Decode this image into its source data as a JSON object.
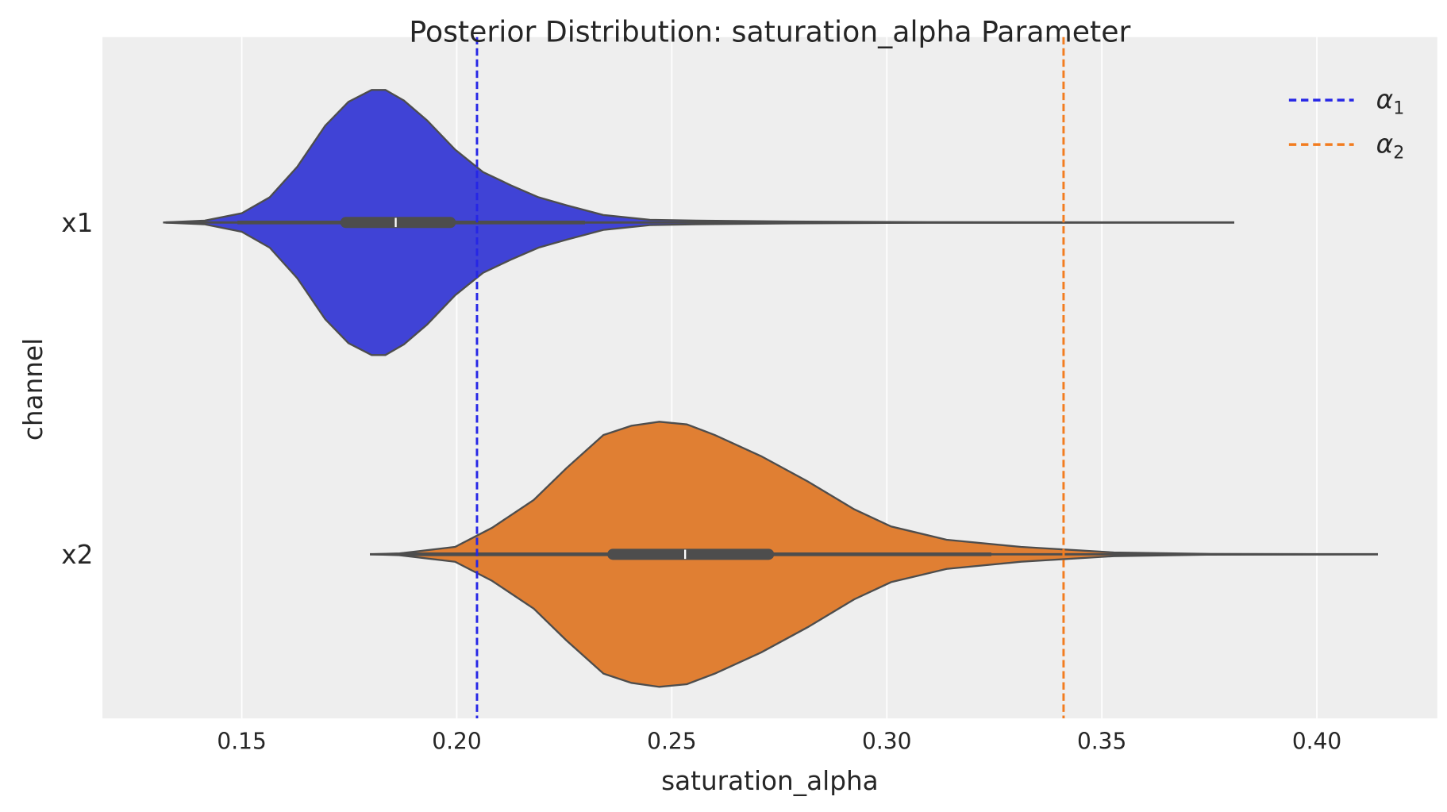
{
  "chart_data": {
    "type": "violin",
    "title": "Posterior Distribution: saturation_alpha Parameter",
    "xlabel": "saturation_alpha",
    "ylabel": "channel",
    "xlim": [
      0.1176,
      0.428
    ],
    "xticks": [
      "0.15",
      "0.20",
      "0.25",
      "0.30",
      "0.35",
      "0.40"
    ],
    "grid": true,
    "orientation": "horizontal",
    "legend_placement": "top-right",
    "categories": [
      "x1",
      "x2"
    ],
    "series": [
      {
        "category": "x1",
        "color": "#4043d6",
        "range": [
          0.1323,
          0.3808
        ],
        "whisker": [
          0.149,
          0.2298
        ],
        "quartiles": [
          0.1742,
          0.1858,
          0.1985
        ],
        "density": [
          [
            0.1317,
            0
          ],
          [
            0.1414,
            0.014
          ],
          [
            0.15,
            0.07
          ],
          [
            0.1565,
            0.19
          ],
          [
            0.1629,
            0.42
          ],
          [
            0.1694,
            0.73
          ],
          [
            0.1748,
            0.91
          ],
          [
            0.1802,
            1.0
          ],
          [
            0.1834,
            1.0
          ],
          [
            0.1877,
            0.92
          ],
          [
            0.1931,
            0.77
          ],
          [
            0.1996,
            0.55
          ],
          [
            0.2061,
            0.38
          ],
          [
            0.2126,
            0.28
          ],
          [
            0.219,
            0.19
          ],
          [
            0.2255,
            0.13
          ],
          [
            0.2341,
            0.056
          ],
          [
            0.2449,
            0.02
          ],
          [
            0.2557,
            0.014
          ],
          [
            0.2773,
            0.007
          ],
          [
            0.3096,
            0.002
          ],
          [
            0.3808,
            0
          ]
        ]
      },
      {
        "category": "x2",
        "color": "#e07f33",
        "range": [
          0.1798,
          0.4142
        ],
        "whisker": [
          0.1867,
          0.3243
        ],
        "quartiles": [
          0.2363,
          0.2531,
          0.2725
        ],
        "density": [
          [
            0.1798,
            0
          ],
          [
            0.1867,
            0.007
          ],
          [
            0.1996,
            0.056
          ],
          [
            0.2082,
            0.2
          ],
          [
            0.2179,
            0.41
          ],
          [
            0.2255,
            0.65
          ],
          [
            0.2341,
            0.9
          ],
          [
            0.2406,
            0.97
          ],
          [
            0.2471,
            1.0
          ],
          [
            0.2535,
            0.98
          ],
          [
            0.26,
            0.9
          ],
          [
            0.2708,
            0.74
          ],
          [
            0.2816,
            0.55
          ],
          [
            0.2924,
            0.34
          ],
          [
            0.301,
            0.21
          ],
          [
            0.3139,
            0.11
          ],
          [
            0.3312,
            0.056
          ],
          [
            0.3528,
            0.014
          ],
          [
            0.3743,
            0.003
          ],
          [
            0.4142,
            0
          ]
        ]
      }
    ],
    "reference_lines": [
      {
        "name": "α1",
        "base": "α",
        "sub": "1",
        "value": 0.2047,
        "color": "#2626e6",
        "style": "dashed"
      },
      {
        "name": "α2",
        "base": "α",
        "sub": "2",
        "value": 0.3411,
        "color": "#f27c1f",
        "style": "dashed"
      }
    ]
  }
}
